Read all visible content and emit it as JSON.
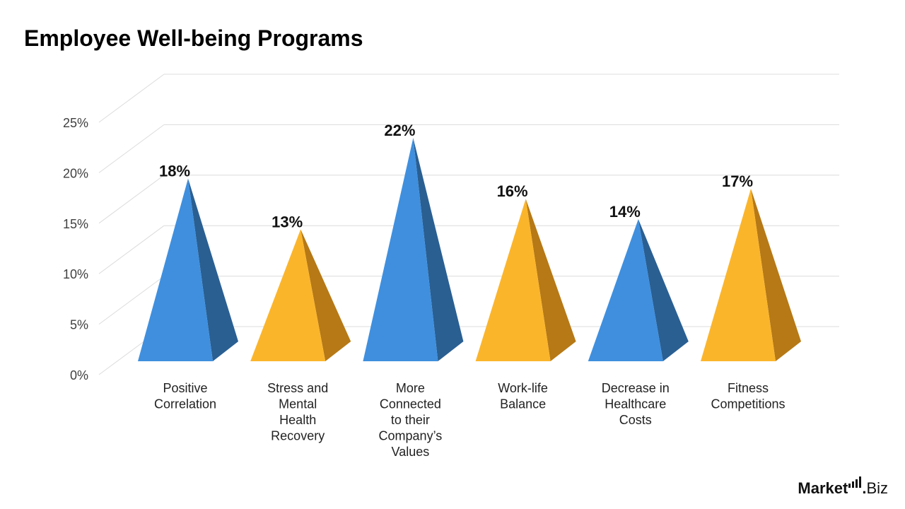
{
  "chart_data": {
    "type": "bar",
    "bar_shape": "pyramid-3d",
    "title": "Employee Well-being Programs",
    "categories": [
      [
        "Positive",
        "Correlation"
      ],
      [
        "Stress and",
        "Mental",
        "Health",
        "Recovery"
      ],
      [
        "More",
        "Connected",
        "to their",
        "Company’s",
        "Values"
      ],
      [
        "Work-life",
        "Balance"
      ],
      [
        "Decrease in",
        "Healthcare",
        "Costs"
      ],
      [
        "Fitness",
        "Competitions"
      ]
    ],
    "values": [
      18,
      13,
      22,
      16,
      14,
      17
    ],
    "data_labels": [
      "18%",
      "13%",
      "22%",
      "16%",
      "14%",
      "17%"
    ],
    "bar_colors": [
      "blue",
      "orange",
      "blue",
      "orange",
      "blue",
      "orange"
    ],
    "yticks": [
      {
        "value": 0,
        "label": "0%"
      },
      {
        "value": 5,
        "label": "5%"
      },
      {
        "value": 10,
        "label": "10%"
      },
      {
        "value": 15,
        "label": "15%"
      },
      {
        "value": 20,
        "label": "20%"
      },
      {
        "value": 25,
        "label": "25%"
      }
    ],
    "ylim": [
      0,
      25
    ],
    "xlabel": "",
    "ylabel": "",
    "grid": true,
    "legend": "none"
  },
  "colors": {
    "blue": {
      "front": "#3f8fde",
      "side": "#2a5f92"
    },
    "orange": {
      "front": "#fbb52b",
      "side": "#b67916"
    },
    "gridline": "#dcdcdc",
    "axis_text": "#404040",
    "label_text": "#111111"
  },
  "brand": {
    "market": "Market",
    "dot": ".",
    "biz": "Biz"
  }
}
